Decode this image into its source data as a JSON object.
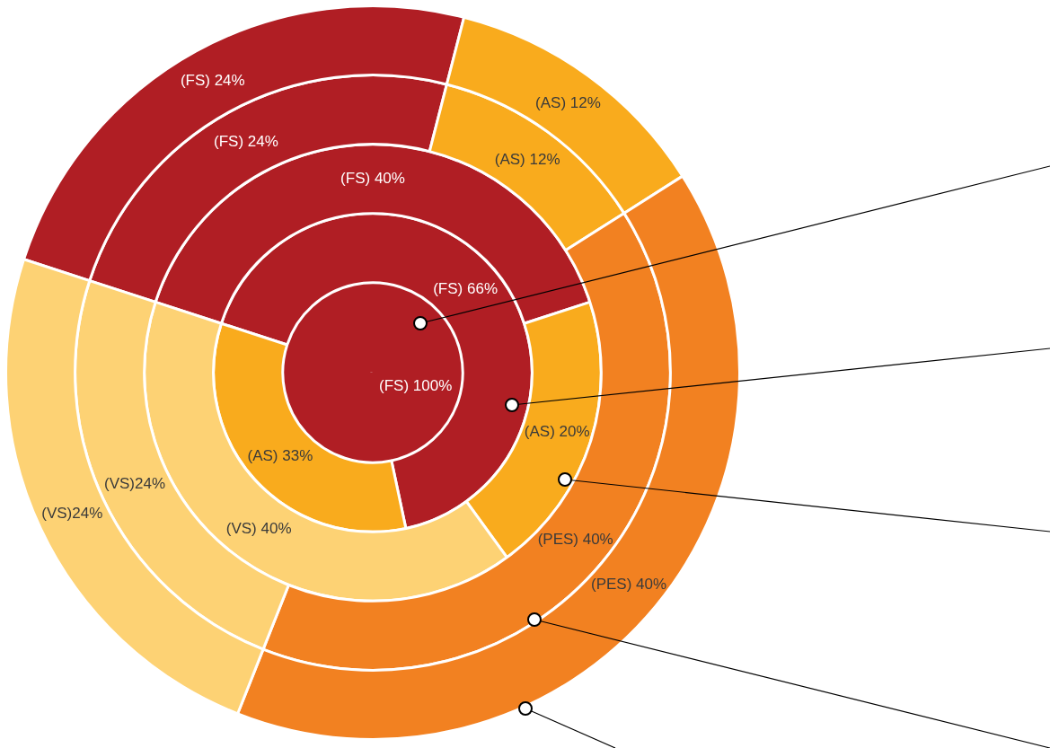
{
  "chart_data": {
    "type": "donut",
    "series": [
      {
        "values": [
          100
        ],
        "colors": [
          "#b01e24"
        ],
        "value_labels": [
          "(FS) 100%"
        ]
      },
      {
        "values": [
          66,
          33
        ],
        "colors": [
          "#b01e24",
          "#f9ab1d"
        ],
        "value_labels": [
          "(FS) 66%",
          "(AS) 33%"
        ]
      },
      {
        "values": [
          40,
          20,
          40
        ],
        "colors": [
          "#b01e24",
          "#f9ab1d",
          "#fdd274"
        ],
        "value_labels": [
          "(FS) 40%",
          "(AS) 20%",
          "(VS) 40%"
        ]
      },
      {
        "values": [
          24,
          12,
          40,
          24
        ],
        "colors": [
          "#b01e24",
          "#f9ab1d",
          "#f28121",
          "#fdd274"
        ],
        "value_labels": [
          "(FS) 24%",
          "(AS) 12%",
          "(PES) 40%",
          "(VS)24%"
        ]
      },
      {
        "values": [
          24,
          12,
          40,
          24
        ],
        "colors": [
          "#b01e24",
          "#f9ab1d",
          "#f28121",
          "#fdd274"
        ],
        "value_labels": [
          "(FS) 24%",
          "(AS) 12%",
          "(PES) 40%",
          "(VS)24%"
        ]
      }
    ]
  }
}
